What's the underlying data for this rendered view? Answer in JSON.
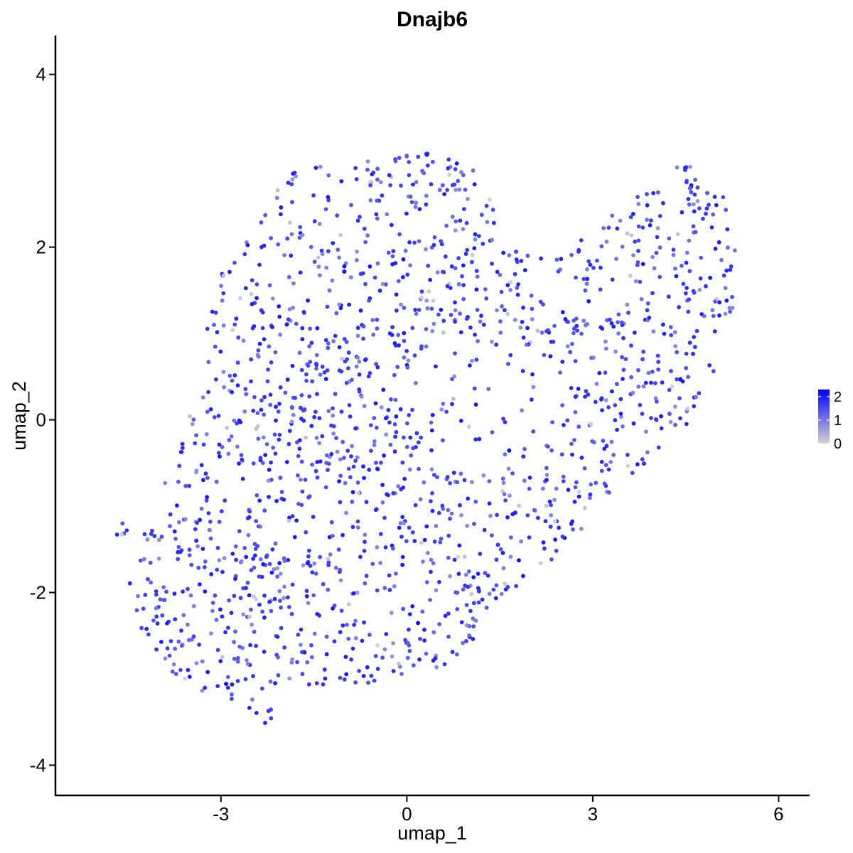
{
  "chart_data": {
    "type": "scatter",
    "title": "Dnajb6",
    "xlabel": "umap_1",
    "ylabel": "umap_2",
    "xlim": [
      -5.67,
      6.5
    ],
    "ylim": [
      -4.35,
      4.45
    ],
    "x_ticks": [
      -3,
      0,
      3,
      6
    ],
    "y_ticks": [
      -4,
      -2,
      0,
      2,
      4
    ],
    "x_tick_labels": [
      "-3",
      "0",
      "3",
      "6"
    ],
    "y_tick_labels": [
      "-4",
      "-2",
      "0",
      "2",
      "4"
    ],
    "grid": false,
    "legend": {
      "position": "right",
      "type": "colorbar",
      "labels": [
        "2",
        "1",
        "0"
      ],
      "values": [
        2,
        1,
        0
      ],
      "range": [
        0,
        2.3
      ],
      "low_color": "#d3d3d3",
      "high_color": "#0000ff"
    },
    "point_count_estimate": 1700,
    "region_outline": [
      [
        -4.65,
        -1.15
      ],
      [
        -4.3,
        -1.35
      ],
      [
        -3.6,
        -0.2
      ],
      [
        -3.0,
        1.8
      ],
      [
        -2.4,
        2.3
      ],
      [
        -2.0,
        2.85
      ],
      [
        -1.0,
        3.0
      ],
      [
        0.3,
        3.12
      ],
      [
        1.1,
        2.9
      ],
      [
        1.6,
        2.3
      ],
      [
        1.8,
        1.9
      ],
      [
        2.4,
        1.9
      ],
      [
        3.2,
        2.3
      ],
      [
        4.0,
        2.75
      ],
      [
        4.6,
        3.05
      ],
      [
        5.1,
        2.6
      ],
      [
        5.35,
        2.0
      ],
      [
        5.2,
        0.8
      ],
      [
        4.6,
        0.0
      ],
      [
        4.0,
        -0.4
      ],
      [
        3.7,
        -0.6
      ],
      [
        3.5,
        -0.9
      ],
      [
        3.0,
        -1.2
      ],
      [
        2.4,
        -1.6
      ],
      [
        1.6,
        -2.1
      ],
      [
        1.0,
        -2.6
      ],
      [
        0.6,
        -2.9
      ],
      [
        0.0,
        -3.05
      ],
      [
        -0.8,
        -3.05
      ],
      [
        -1.5,
        -3.1
      ],
      [
        -2.2,
        -3.55
      ],
      [
        -2.8,
        -3.35
      ],
      [
        -3.4,
        -3.1
      ],
      [
        -4.0,
        -2.9
      ],
      [
        -4.3,
        -2.4
      ],
      [
        -4.5,
        -1.8
      ],
      [
        -4.7,
        -1.3
      ]
    ],
    "hole_center": [
      1.3,
      0.2
    ],
    "hole_radius": [
      1.2,
      0.85
    ],
    "random_seed": 20240601
  }
}
